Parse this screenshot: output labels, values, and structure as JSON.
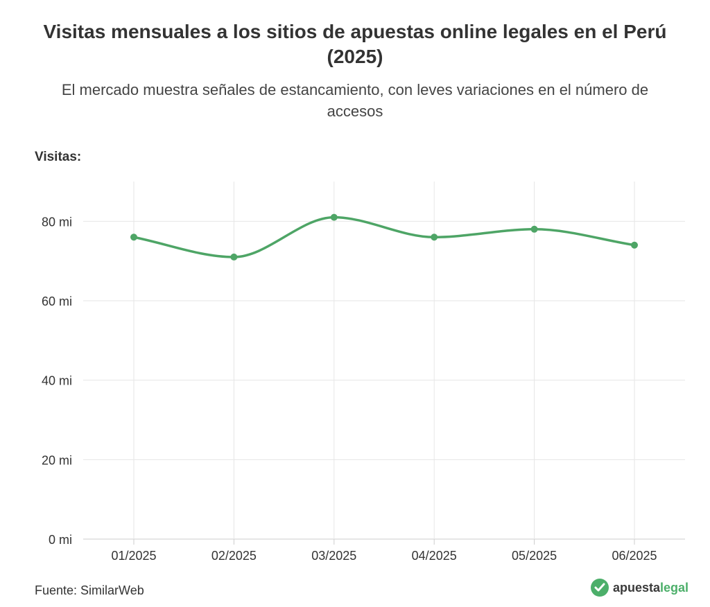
{
  "chart_data": {
    "type": "line",
    "title": "Visitas mensuales a los sitios de apuestas online legales en el Perú (2025)",
    "subtitle": "El mercado muestra señales de estancamiento, con leves variaciones en el número de accesos",
    "ylabel": "Visitas:",
    "xlabel": "",
    "categories": [
      "01/2025",
      "02/2025",
      "03/2025",
      "04/2025",
      "05/2025",
      "06/2025"
    ],
    "series": [
      {
        "values": [
          76,
          71,
          81,
          76,
          78,
          74
        ]
      }
    ],
    "ylim": [
      0,
      90
    ],
    "yticks": [
      0,
      20,
      40,
      60,
      80
    ],
    "ytick_labels": [
      "0 mi",
      "20 mi",
      "40 mi",
      "60 mi",
      "80 mi"
    ],
    "unit_suffix": " mi",
    "grid": true,
    "line_color": "#4ea566",
    "source": "Fuente: SimilarWeb"
  },
  "brand": {
    "part1": "apuesta",
    "part2": "legal",
    "icon": "checkmark-icon"
  }
}
